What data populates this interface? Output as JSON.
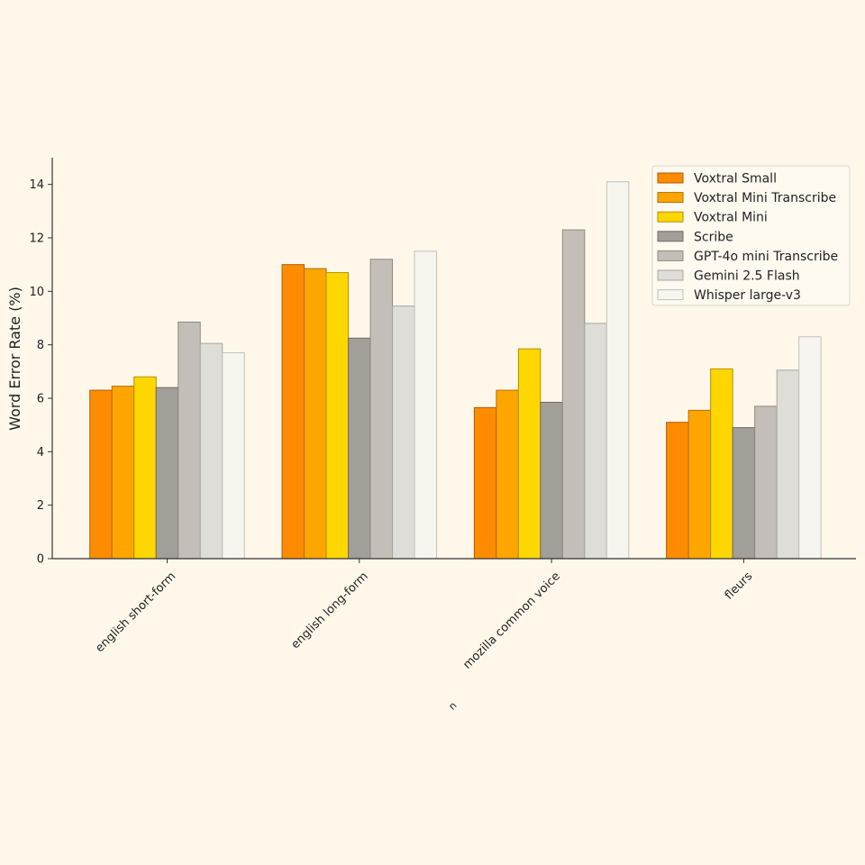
{
  "chart_data": {
    "type": "bar",
    "title": "",
    "xlabel": "n",
    "ylabel": "Word Error Rate (%)",
    "ylim": [
      0,
      15
    ],
    "yticks": [
      0,
      2,
      4,
      6,
      8,
      10,
      12,
      14
    ],
    "grid": false,
    "legend_position": "top-right",
    "categories": [
      "english short-form",
      "english long-form",
      "mozilla common voice",
      "fleurs"
    ],
    "series": [
      {
        "name": "Voxtral Small",
        "color": "#ff8c00",
        "edge": "#b05a00",
        "values": [
          6.3,
          11.0,
          5.65,
          5.1
        ]
      },
      {
        "name": "Voxtral Mini Transcribe",
        "color": "#ffa500",
        "edge": "#b07000",
        "values": [
          6.45,
          10.85,
          6.3,
          5.55
        ]
      },
      {
        "name": "Voxtral Mini",
        "color": "#ffd700",
        "edge": "#b09000",
        "values": [
          6.8,
          10.7,
          7.85,
          7.1
        ]
      },
      {
        "name": "Scribe",
        "color": "#a29e98",
        "edge": "#6e6a64",
        "values": [
          6.4,
          8.25,
          5.85,
          4.9
        ]
      },
      {
        "name": "GPT-4o mini Transcribe",
        "color": "#c3bfb8",
        "edge": "#8e8a84",
        "values": [
          8.85,
          11.2,
          12.3,
          5.7
        ]
      },
      {
        "name": "Gemini 2.5 Flash",
        "color": "#deddd8",
        "edge": "#a8a6a0",
        "values": [
          8.05,
          9.45,
          8.8,
          7.05
        ]
      },
      {
        "name": "Whisper large-v3",
        "color": "#f6f5ee",
        "edge": "#c2c0b8",
        "values": [
          7.7,
          11.5,
          14.1,
          8.3
        ]
      }
    ]
  }
}
